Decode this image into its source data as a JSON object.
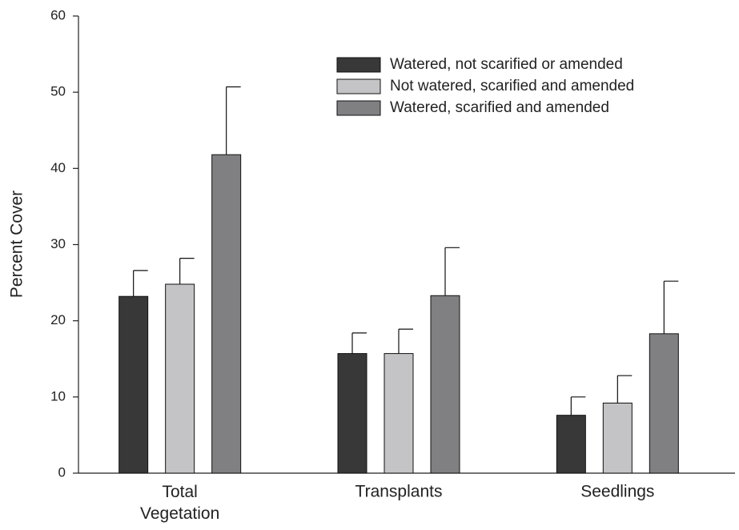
{
  "chart_data": {
    "type": "bar",
    "y_label": "Percent Cover",
    "categories": [
      "Total Vegetation",
      "Transplants",
      "Seedlings"
    ],
    "series": [
      {
        "name": "Watered, not scarified or amended",
        "color": "#383838",
        "values": [
          23.2,
          15.7,
          7.6
        ],
        "errors": [
          3.4,
          2.7,
          2.4
        ]
      },
      {
        "name": "Not watered, scarified and amended",
        "color": "#c4c4c6",
        "values": [
          24.8,
          15.7,
          9.2
        ],
        "errors": [
          3.4,
          3.2,
          3.6
        ]
      },
      {
        "name": "Watered, scarified and amended",
        "color": "#808083",
        "values": [
          41.8,
          23.3,
          18.3
        ],
        "errors": [
          8.9,
          6.3,
          6.9
        ]
      }
    ],
    "ylim": [
      0,
      60
    ],
    "yticks": [
      0,
      10,
      20,
      30,
      40,
      50,
      60
    ],
    "grid": false,
    "legend": "upper right"
  }
}
